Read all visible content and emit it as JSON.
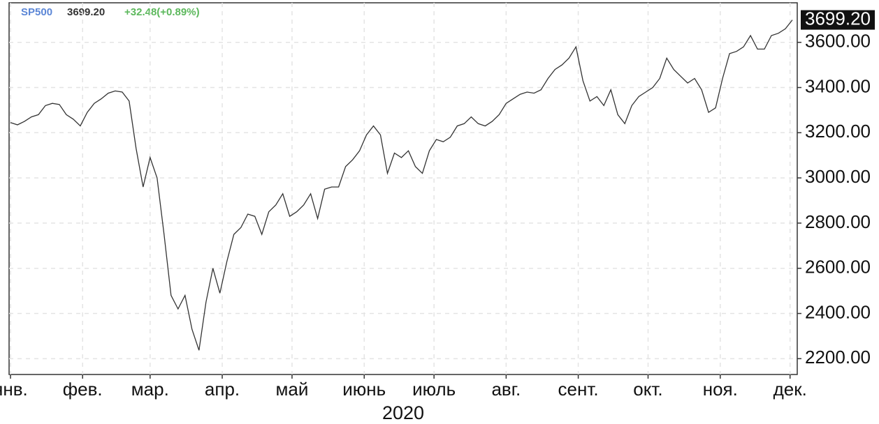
{
  "chart_data": {
    "type": "line",
    "header": {
      "symbol": "SP500",
      "price": "3699.20",
      "change": "+32.48(+0.89%)"
    },
    "xlabel": "2020",
    "series": [
      {
        "name": "SP500",
        "color": "#333333",
        "values": [
          3245,
          3235,
          3250,
          3270,
          3280,
          3320,
          3330,
          3325,
          3280,
          3260,
          3230,
          3290,
          3330,
          3350,
          3375,
          3385,
          3380,
          3340,
          3130,
          2960,
          3090,
          3000,
          2750,
          2480,
          2420,
          2480,
          2330,
          2237,
          2450,
          2600,
          2490,
          2630,
          2750,
          2780,
          2840,
          2830,
          2750,
          2850,
          2880,
          2930,
          2830,
          2850,
          2880,
          2930,
          2820,
          2950,
          2960,
          2960,
          3050,
          3080,
          3120,
          3190,
          3230,
          3190,
          3020,
          3110,
          3090,
          3120,
          3050,
          3020,
          3120,
          3170,
          3160,
          3180,
          3230,
          3240,
          3270,
          3240,
          3230,
          3250,
          3280,
          3330,
          3350,
          3370,
          3380,
          3375,
          3390,
          3440,
          3480,
          3500,
          3530,
          3580,
          3430,
          3340,
          3360,
          3320,
          3390,
          3280,
          3240,
          3320,
          3360,
          3380,
          3400,
          3440,
          3530,
          3480,
          3450,
          3420,
          3440,
          3390,
          3290,
          3310,
          3440,
          3550,
          3560,
          3580,
          3630,
          3570,
          3570,
          3630,
          3640,
          3660,
          3699.2
        ]
      }
    ],
    "xlim": [
      0,
      112.7
    ],
    "xticks": [
      {
        "value": 0,
        "label": "янв."
      },
      {
        "value": 10.33,
        "label": "фев."
      },
      {
        "value": 20,
        "label": "мар."
      },
      {
        "value": 30.33,
        "label": "апр."
      },
      {
        "value": 40.33,
        "label": "май"
      },
      {
        "value": 50.67,
        "label": "июнь"
      },
      {
        "value": 60.67,
        "label": "июль"
      },
      {
        "value": 71,
        "label": "авг."
      },
      {
        "value": 81.33,
        "label": "сент."
      },
      {
        "value": 91.33,
        "label": "окт."
      },
      {
        "value": 101.67,
        "label": "ноя."
      },
      {
        "value": 111.67,
        "label": "дек."
      }
    ],
    "ylim": [
      2130,
      3775
    ],
    "yticks": [
      {
        "value": 2200,
        "label": "2200.00"
      },
      {
        "value": 2400,
        "label": "2400.00"
      },
      {
        "value": 2600,
        "label": "2600.00"
      },
      {
        "value": 2800,
        "label": "2800.00"
      },
      {
        "value": 3000,
        "label": "3000.00"
      },
      {
        "value": 3200,
        "label": "3200.00"
      },
      {
        "value": 3400,
        "label": "3400.00"
      },
      {
        "value": 3600,
        "label": "3600.00"
      }
    ],
    "grid": true
  }
}
